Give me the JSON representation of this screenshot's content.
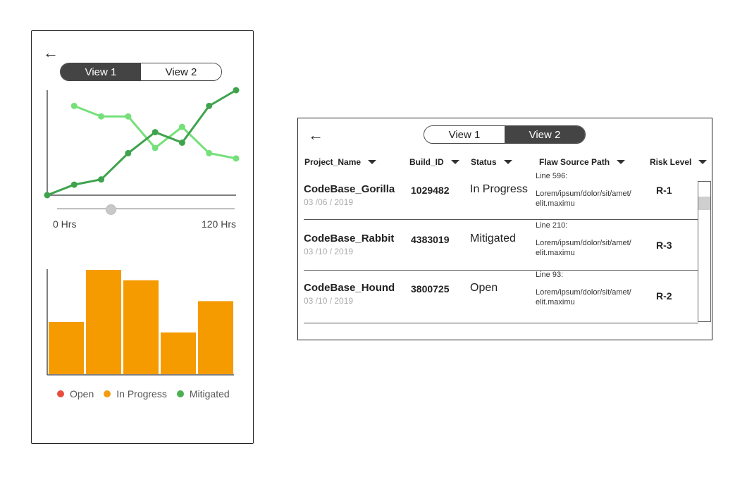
{
  "phone": {
    "tabs": [
      {
        "label": "View 1",
        "active": true
      },
      {
        "label": "View 2",
        "active": false
      }
    ],
    "range": {
      "min_label": "0 Hrs",
      "max_label": "120 Hrs",
      "slider_value": 0.3
    },
    "legend": [
      {
        "label": "Open",
        "color": "#e84c3d"
      },
      {
        "label": "In Progress",
        "color": "#f39c12"
      },
      {
        "label": "Mitigated",
        "color": "#4caf50"
      }
    ]
  },
  "chart_data": [
    {
      "type": "line",
      "series": [
        {
          "color": "#75e07a",
          "values": [
            null,
            85,
            75,
            75,
            45,
            65,
            40,
            35
          ]
        },
        {
          "color": "#3fa34d",
          "values": [
            0,
            10,
            15,
            40,
            60,
            50,
            85,
            100
          ]
        }
      ],
      "ylim": [
        0,
        100
      ]
    },
    {
      "type": "bar",
      "values": [
        50,
        100,
        90,
        40,
        70
      ],
      "color": "#f59b00",
      "ylim": [
        0,
        100
      ]
    }
  ],
  "table": {
    "tabs": [
      {
        "label": "View 1",
        "active": false
      },
      {
        "label": "View 2",
        "active": true
      }
    ],
    "columns": [
      "Project_Name",
      "Build_ID",
      "Status",
      "Flaw Source Path",
      "Risk Level"
    ],
    "rows": [
      {
        "name": "CodeBase_Gorilla",
        "date": "03 /06 / 2019",
        "build": "1029482",
        "status": "In Progress",
        "line": "Line 596:",
        "path": "Lorem/ipsum/dolor/sit/amet/ elit.maximu",
        "risk": "R-1"
      },
      {
        "name": "CodeBase_Rabbit",
        "date": "03 /10 / 2019",
        "build": "4383019",
        "status": "Mitigated",
        "line": "Line 210:",
        "path": "Lorem/ipsum/dolor/sit/amet/ elit.maximu",
        "risk": "R-3"
      },
      {
        "name": "CodeBase_Hound",
        "date": "03 /10 / 2019",
        "build": "3800725",
        "status": "Open",
        "line": "Line 93:",
        "path": "Lorem/ipsum/dolor/sit/amet/ elit.maximu",
        "risk": "R-2"
      }
    ]
  }
}
